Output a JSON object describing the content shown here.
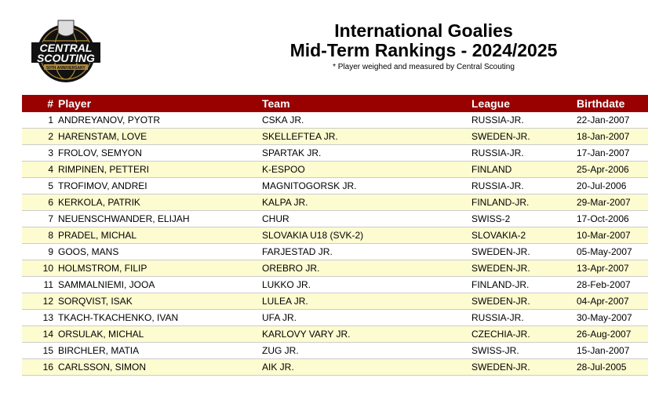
{
  "header": {
    "logo_text": "CENTRAL SCOUTING",
    "logo_subtext": "50TH ANNIVERSARY",
    "title_line1": "International Goalies",
    "title_line2": "Mid-Term Rankings - 2024/2025",
    "note": "* Player weighed and measured by Central Scouting"
  },
  "columns": [
    "#",
    "Player",
    "Team",
    "League",
    "Birthdate"
  ],
  "rows": [
    [
      "1",
      "ANDREYANOV, PYOTR",
      "CSKA JR.",
      "RUSSIA-JR.",
      "22-Jan-2007"
    ],
    [
      "2",
      "HARENSTAM, LOVE",
      "SKELLEFTEA JR.",
      "SWEDEN-JR.",
      "18-Jan-2007"
    ],
    [
      "3",
      "FROLOV, SEMYON",
      "SPARTAK JR.",
      "RUSSIA-JR.",
      "17-Jan-2007"
    ],
    [
      "4",
      "RIMPINEN, PETTERI",
      "K-ESPOO",
      "FINLAND",
      "25-Apr-2006"
    ],
    [
      "5",
      "TROFIMOV, ANDREI",
      "MAGNITOGORSK JR.",
      "RUSSIA-JR.",
      "20-Jul-2006"
    ],
    [
      "6",
      "KERKOLA, PATRIK",
      "KALPA JR.",
      "FINLAND-JR.",
      "29-Mar-2007"
    ],
    [
      "7",
      "NEUENSCHWANDER, ELIJAH",
      "CHUR",
      "SWISS-2",
      "17-Oct-2006"
    ],
    [
      "8",
      "PRADEL, MICHAL",
      "SLOVAKIA U18 (SVK-2)",
      "SLOVAKIA-2",
      "10-Mar-2007"
    ],
    [
      "9",
      "GOOS, MANS",
      "FARJESTAD JR.",
      "SWEDEN-JR.",
      "05-May-2007"
    ],
    [
      "10",
      "HOLMSTROM, FILIP",
      "OREBRO JR.",
      "SWEDEN-JR.",
      "13-Apr-2007"
    ],
    [
      "11",
      "SAMMALNIEMI, JOOA",
      "LUKKO JR.",
      "FINLAND-JR.",
      "28-Feb-2007"
    ],
    [
      "12",
      "SORQVIST, ISAK",
      "LULEA JR.",
      "SWEDEN-JR.",
      "04-Apr-2007"
    ],
    [
      "13",
      "TKACH-TKACHENKO, IVAN",
      "UFA JR.",
      "RUSSIA-JR.",
      "30-May-2007"
    ],
    [
      "14",
      "ORSULAK, MICHAL",
      "KARLOVY VARY JR.",
      "CZECHIA-JR.",
      "26-Aug-2007"
    ],
    [
      "15",
      "BIRCHLER, MATIA",
      "ZUG JR.",
      "SWISS-JR.",
      "15-Jan-2007"
    ],
    [
      "16",
      "CARLSSON, SIMON",
      "AIK JR.",
      "SWEDEN-JR.",
      "28-Jul-2005"
    ]
  ],
  "colors": {
    "header_bg": "#990000",
    "alt_row": "#fdfbd0"
  }
}
